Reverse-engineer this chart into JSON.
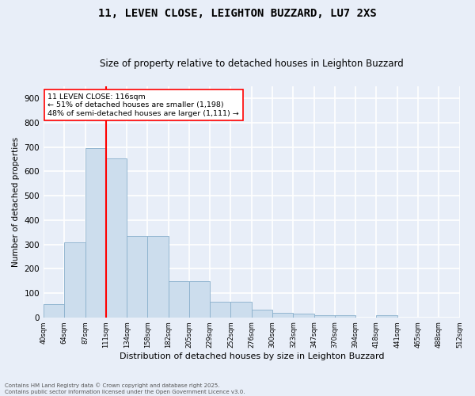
{
  "title": "11, LEVEN CLOSE, LEIGHTON BUZZARD, LU7 2XS",
  "subtitle": "Size of property relative to detached houses in Leighton Buzzard",
  "xlabel": "Distribution of detached houses by size in Leighton Buzzard",
  "ylabel": "Number of detached properties",
  "bar_color": "#ccdded",
  "bar_edge_color": "#8ab0cc",
  "background_color": "#e8eef8",
  "grid_color": "#ffffff",
  "red_line_x": 3.0,
  "annotation_title": "11 LEVEN CLOSE: 116sqm",
  "annotation_line1": "← 51% of detached houses are smaller (1,198)",
  "annotation_line2": "48% of semi-detached houses are larger (1,111) →",
  "footer_line1": "Contains HM Land Registry data © Crown copyright and database right 2025.",
  "footer_line2": "Contains public sector information licensed under the Open Government Licence v3.0.",
  "bin_labels": [
    "40sqm",
    "64sqm",
    "87sqm",
    "111sqm",
    "134sqm",
    "158sqm",
    "182sqm",
    "205sqm",
    "229sqm",
    "252sqm",
    "276sqm",
    "300sqm",
    "323sqm",
    "347sqm",
    "370sqm",
    "394sqm",
    "418sqm",
    "441sqm",
    "465sqm",
    "488sqm",
    "512sqm"
  ],
  "values": [
    55,
    310,
    695,
    655,
    335,
    335,
    150,
    150,
    65,
    65,
    30,
    20,
    15,
    10,
    10,
    0,
    10,
    0,
    0,
    0
  ],
  "ylim": [
    0,
    950
  ],
  "yticks": [
    0,
    100,
    200,
    300,
    400,
    500,
    600,
    700,
    800,
    900
  ]
}
